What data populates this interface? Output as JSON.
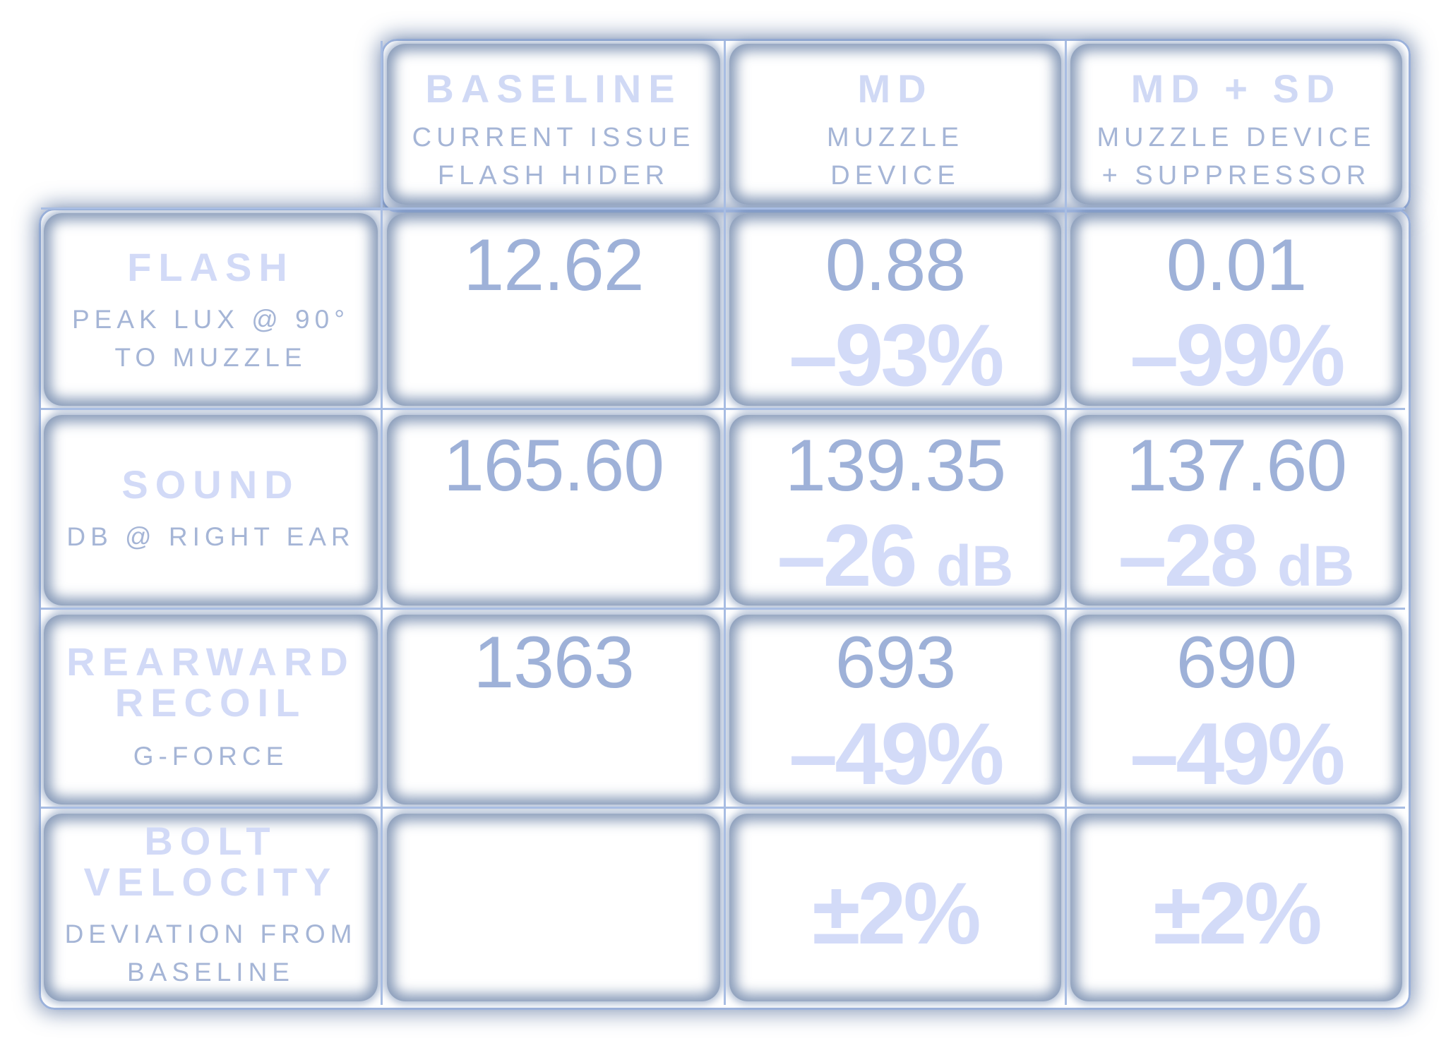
{
  "columns": [
    {
      "title": "BASELINE",
      "subtitle_1": "CURRENT ISSUE",
      "subtitle_2": "FLASH HIDER"
    },
    {
      "title": "MD",
      "subtitle_1": "MUZZLE",
      "subtitle_2": "DEVICE"
    },
    {
      "title": "MD + SD",
      "subtitle_1": "MUZZLE DEVICE",
      "subtitle_2": "+ SUPPRESSOR"
    }
  ],
  "rows": [
    {
      "title_1": "FLASH",
      "title_2": "",
      "subtitle_1": "PEAK LUX @ 90°",
      "subtitle_2": "TO MUZZLE",
      "baseline": "12.62",
      "md": {
        "value": "0.88",
        "change": "–93%",
        "unit": ""
      },
      "mdsd": {
        "value": "0.01",
        "change": "–99%",
        "unit": ""
      }
    },
    {
      "title_1": "SOUND",
      "title_2": "",
      "subtitle_1": "DB @ RIGHT EAR",
      "subtitle_2": "",
      "baseline": "165.60",
      "md": {
        "value": "139.35",
        "change": "–26",
        "unit": "dB"
      },
      "mdsd": {
        "value": "137.60",
        "change": "–28",
        "unit": "dB"
      }
    },
    {
      "title_1": "REARWARD",
      "title_2": "RECOIL",
      "subtitle_1": "G-FORCE",
      "subtitle_2": "",
      "baseline": "1363",
      "md": {
        "value": "693",
        "change": "–49%",
        "unit": ""
      },
      "mdsd": {
        "value": "690",
        "change": "–49%",
        "unit": ""
      }
    },
    {
      "title_1": "BOLT",
      "title_2": "VELOCITY",
      "subtitle_1": "DEVIATION FROM",
      "subtitle_2": "BASELINE",
      "baseline": "",
      "md": {
        "value": "",
        "change": "±2%",
        "unit": ""
      },
      "mdsd": {
        "value": "",
        "change": "±2%",
        "unit": ""
      }
    }
  ],
  "colors": {
    "frame_line": "#a8bde3",
    "cell_shadow": "#3e5c8c",
    "title_text": "#d0d9f5",
    "subtitle_text": "#a5b5d6",
    "value_text": "#9eb1d8",
    "change_text": "#d3dbf8"
  }
}
